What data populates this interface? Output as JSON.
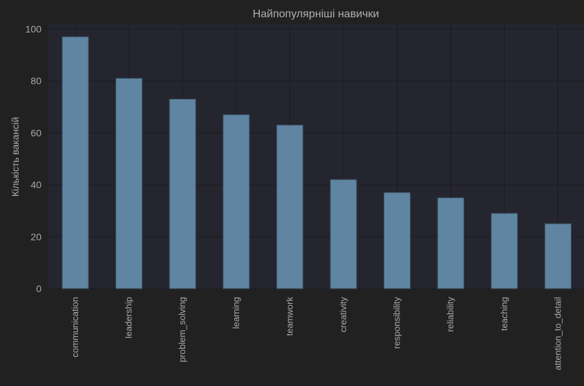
{
  "colors": {
    "figure_bg": "#212121",
    "plot_bg": "#24252e",
    "grid": "#1c1c1e",
    "bar_fill": "#5f85a3",
    "bar_edge": "#3a4f60",
    "text": "#a9a9a9",
    "title_text": "#b0b0b0"
  },
  "chart_data": {
    "type": "bar",
    "title": "Найпопулярніші навички",
    "xlabel": "",
    "ylabel": "Кількість вакансій",
    "categories": [
      "communication",
      "leadership",
      "problem_solving",
      "learning",
      "teamwork",
      "creativity",
      "responsibility",
      "reliability",
      "teaching",
      "attention_to_detail"
    ],
    "values": [
      97,
      81,
      73,
      67,
      63,
      42,
      37,
      35,
      29,
      25
    ],
    "ylim": [
      0,
      100
    ],
    "yticks": [
      0,
      20,
      40,
      60,
      80,
      100
    ],
    "grid": true,
    "legend": "none"
  }
}
